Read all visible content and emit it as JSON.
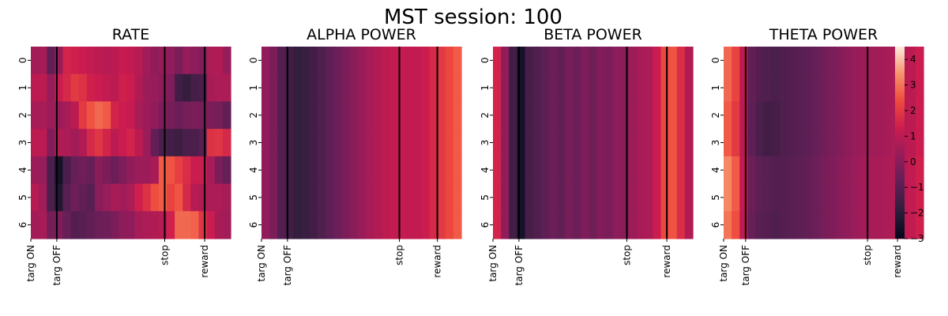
{
  "figure": {
    "suptitle": "MST session: 100"
  },
  "chart_data": [
    {
      "type": "heatmap",
      "title": "RATE",
      "rows": [
        "0",
        "1",
        "2",
        "3",
        "4",
        "5",
        "6"
      ],
      "x_tick_labels": [
        "targ ON",
        "targ OFF",
        "stop",
        "reward"
      ],
      "event_positions": [
        0.0,
        0.13,
        0.67,
        0.87
      ],
      "event_lines": [
        "targ OFF",
        "stop",
        "reward"
      ],
      "values": [
        [
          0.5,
          0.6,
          -0.8,
          0.3,
          1.5,
          1.4,
          1.3,
          1.1,
          1.0,
          0.9,
          1.0,
          1.2,
          1.1,
          0.9,
          0.5,
          0.2,
          0.3,
          0.2,
          -0.3,
          0.3,
          0.1,
          -0.1,
          0.7,
          0.8,
          0.3
        ],
        [
          1.0,
          1.0,
          0.3,
          1.3,
          1.6,
          2.0,
          1.8,
          1.4,
          1.3,
          1.1,
          1.0,
          1.4,
          1.3,
          0.8,
          0.4,
          0.3,
          0.1,
          -0.2,
          -1.5,
          -1.8,
          -1.4,
          -1.3,
          0.6,
          0.7,
          0.7
        ],
        [
          0.6,
          0.6,
          0.4,
          0.4,
          0.6,
          1.0,
          2.0,
          2.5,
          2.8,
          2.6,
          1.5,
          1.3,
          1.2,
          0.6,
          0.4,
          0.2,
          -0.2,
          -0.4,
          -0.6,
          -0.4,
          -0.3,
          -0.4,
          -0.3,
          -0.4,
          -0.8
        ],
        [
          1.0,
          1.0,
          -0.1,
          0.8,
          0.7,
          0.5,
          0.8,
          1.6,
          1.9,
          1.5,
          1.0,
          1.3,
          1.5,
          1.0,
          0.4,
          -0.8,
          -1.3,
          -1.5,
          -1.6,
          -1.3,
          -1.3,
          -1.0,
          1.8,
          1.9,
          1.6
        ],
        [
          0.4,
          0.3,
          -1.3,
          -2.5,
          -1.3,
          -0.7,
          -0.5,
          -0.7,
          0.0,
          -0.3,
          -0.6,
          -0.2,
          0.2,
          0.4,
          0.4,
          0.6,
          2.6,
          2.5,
          2.1,
          1.7,
          1.3,
          1.3,
          0.6,
          -0.3,
          -0.7
        ],
        [
          0.9,
          0.5,
          -1.3,
          -2.2,
          -1.0,
          -0.5,
          -0.8,
          -1.0,
          0.0,
          0.3,
          0.6,
          0.5,
          0.7,
          1.4,
          1.8,
          2.4,
          2.6,
          2.2,
          2.5,
          1.6,
          0.9,
          0.8,
          0.7,
          0.7,
          0.6
        ],
        [
          0.5,
          0.6,
          -0.4,
          -0.2,
          -0.7,
          -1.1,
          -1.0,
          -0.8,
          -0.6,
          -0.5,
          -0.3,
          0.1,
          0.2,
          0.6,
          0.7,
          0.8,
          0.9,
          1.4,
          2.8,
          2.8,
          2.7,
          1.9,
          1.3,
          0.6,
          0.5
        ]
      ]
    },
    {
      "type": "heatmap",
      "title": "ALPHA POWER",
      "rows": [
        "0",
        "1",
        "2",
        "3",
        "4",
        "5",
        "6"
      ],
      "x_tick_labels": [
        "targ ON",
        "targ OFF",
        "stop",
        "reward"
      ],
      "event_positions": [
        0.0,
        0.13,
        0.69,
        0.88
      ],
      "event_lines": [
        "targ OFF",
        "stop",
        "reward"
      ],
      "values": [
        [
          0.2,
          -0.3,
          -1.1,
          -1.5,
          -1.8,
          -1.7,
          -1.5,
          -1.2,
          -0.9,
          -0.6,
          -0.3,
          0.0,
          0.3,
          0.6,
          0.8,
          1.0,
          1.1,
          1.2,
          1.1,
          1.1,
          1.3,
          1.6,
          2.0,
          2.3,
          2.6
        ],
        [
          0.2,
          -0.3,
          -1.1,
          -1.5,
          -1.8,
          -1.7,
          -1.5,
          -1.2,
          -0.9,
          -0.6,
          -0.3,
          0.0,
          0.3,
          0.6,
          0.8,
          1.0,
          1.1,
          1.2,
          1.1,
          1.1,
          1.3,
          1.6,
          2.0,
          2.3,
          2.6
        ],
        [
          0.2,
          -0.3,
          -1.1,
          -1.5,
          -1.8,
          -1.7,
          -1.5,
          -1.2,
          -0.9,
          -0.6,
          -0.3,
          0.0,
          0.3,
          0.6,
          0.8,
          1.0,
          1.1,
          1.2,
          1.1,
          1.1,
          1.3,
          1.6,
          2.0,
          2.3,
          2.6
        ],
        [
          0.2,
          -0.3,
          -1.1,
          -1.5,
          -1.8,
          -1.7,
          -1.5,
          -1.2,
          -0.9,
          -0.6,
          -0.3,
          0.0,
          0.3,
          0.6,
          0.8,
          1.0,
          1.1,
          1.2,
          1.1,
          1.1,
          1.3,
          1.6,
          2.0,
          2.3,
          2.6
        ],
        [
          0.2,
          -0.3,
          -1.1,
          -1.5,
          -1.8,
          -1.7,
          -1.5,
          -1.2,
          -0.9,
          -0.6,
          -0.3,
          0.0,
          0.3,
          0.6,
          0.8,
          1.0,
          1.1,
          1.2,
          1.1,
          1.1,
          1.3,
          1.6,
          2.0,
          2.3,
          2.6
        ],
        [
          0.2,
          -0.3,
          -1.1,
          -1.5,
          -1.8,
          -1.7,
          -1.5,
          -1.2,
          -0.9,
          -0.6,
          -0.3,
          0.0,
          0.3,
          0.6,
          0.8,
          1.0,
          1.1,
          1.2,
          1.1,
          1.1,
          1.3,
          1.6,
          2.0,
          2.3,
          2.6
        ],
        [
          0.2,
          -0.3,
          -1.1,
          -1.5,
          -1.8,
          -1.7,
          -1.5,
          -1.2,
          -0.9,
          -0.6,
          -0.3,
          0.0,
          0.3,
          0.6,
          0.8,
          1.0,
          1.1,
          1.2,
          1.1,
          1.1,
          1.3,
          1.6,
          2.0,
          2.3,
          2.6
        ]
      ]
    },
    {
      "type": "heatmap",
      "title": "BETA POWER",
      "rows": [
        "0",
        "1",
        "2",
        "3",
        "4",
        "5",
        "6"
      ],
      "x_tick_labels": [
        "targ ON",
        "targ OFF",
        "stop",
        "reward"
      ],
      "event_positions": [
        0.0,
        0.13,
        0.67,
        0.87
      ],
      "event_lines": [
        "targ OFF",
        "stop",
        "reward"
      ],
      "values": [
        [
          1.5,
          0.2,
          -1.5,
          -2.5,
          -1.4,
          -1.2,
          -0.9,
          -0.6,
          -0.8,
          -0.4,
          -0.6,
          -0.2,
          -0.5,
          -0.1,
          -0.3,
          0.1,
          0.0,
          0.4,
          0.6,
          0.7,
          1.3,
          2.3,
          2.5,
          1.7,
          0.8
        ],
        [
          1.5,
          0.2,
          -1.5,
          -2.5,
          -1.4,
          -1.2,
          -0.9,
          -0.6,
          -0.8,
          -0.4,
          -0.6,
          -0.2,
          -0.5,
          -0.1,
          -0.3,
          0.1,
          0.0,
          0.4,
          0.6,
          0.7,
          1.3,
          2.3,
          2.5,
          1.7,
          0.8
        ],
        [
          1.5,
          0.2,
          -1.5,
          -2.5,
          -1.4,
          -1.2,
          -0.9,
          -0.6,
          -0.8,
          -0.4,
          -0.6,
          -0.2,
          -0.5,
          -0.1,
          -0.3,
          0.1,
          0.0,
          0.4,
          0.6,
          0.7,
          1.3,
          2.3,
          2.5,
          1.7,
          0.8
        ],
        [
          1.5,
          0.2,
          -1.5,
          -2.5,
          -1.4,
          -1.2,
          -0.9,
          -0.6,
          -0.8,
          -0.4,
          -0.6,
          -0.2,
          -0.5,
          -0.1,
          -0.3,
          0.1,
          0.0,
          0.4,
          0.6,
          0.7,
          1.3,
          2.3,
          2.5,
          1.7,
          0.8
        ],
        [
          1.5,
          0.2,
          -1.5,
          -2.5,
          -1.4,
          -1.2,
          -0.9,
          -0.6,
          -0.8,
          -0.4,
          -0.6,
          -0.2,
          -0.5,
          -0.1,
          -0.3,
          0.1,
          0.0,
          0.4,
          0.6,
          0.7,
          1.3,
          2.3,
          2.5,
          1.7,
          0.8
        ],
        [
          1.5,
          0.2,
          -1.5,
          -2.5,
          -1.4,
          -1.2,
          -0.9,
          -0.6,
          -0.8,
          -0.4,
          -0.6,
          -0.2,
          -0.5,
          -0.1,
          -0.3,
          0.1,
          0.0,
          0.4,
          0.6,
          0.7,
          1.3,
          2.3,
          2.5,
          1.7,
          0.8
        ],
        [
          1.5,
          0.2,
          -1.5,
          -2.5,
          -1.4,
          -1.2,
          -0.9,
          -0.6,
          -0.8,
          -0.4,
          -0.6,
          -0.2,
          -0.5,
          -0.1,
          -0.3,
          0.1,
          0.0,
          0.4,
          0.6,
          0.7,
          1.3,
          2.3,
          2.5,
          1.7,
          0.8
        ]
      ]
    },
    {
      "type": "heatmap",
      "title": "THETA POWER",
      "rows": [
        "0",
        "1",
        "2",
        "3",
        "4",
        "5",
        "6"
      ],
      "x_tick_labels": [
        "targ ON",
        "targ OFF",
        "stop",
        "reward"
      ],
      "event_positions": [
        0.0,
        0.11,
        0.72,
        0.87
      ],
      "event_lines": [
        "targ OFF",
        "stop",
        "reward"
      ],
      "values": [
        [
          2.8,
          2.2,
          1.0,
          -0.8,
          -1.1,
          -1.2,
          -1.3,
          -1.2,
          -1.1,
          -1.0,
          -0.9,
          -0.7,
          -0.5,
          -0.3,
          -0.1,
          0.1,
          0.3,
          0.4,
          0.5,
          0.5,
          0.6,
          0.7,
          0.9,
          1.0,
          1.3
        ],
        [
          2.8,
          2.2,
          1.0,
          -0.8,
          -1.1,
          -1.2,
          -1.3,
          -1.2,
          -1.1,
          -1.0,
          -0.9,
          -0.7,
          -0.5,
          -0.3,
          -0.1,
          0.1,
          0.3,
          0.4,
          0.5,
          0.5,
          0.6,
          0.7,
          0.9,
          1.0,
          1.3
        ],
        [
          2.6,
          2.0,
          1.0,
          -0.9,
          -1.3,
          -1.5,
          -1.4,
          -1.2,
          -1.1,
          -1.0,
          -0.9,
          -0.7,
          -0.5,
          -0.3,
          -0.1,
          0.1,
          0.3,
          0.4,
          0.5,
          0.5,
          0.6,
          0.7,
          0.9,
          1.0,
          1.3
        ],
        [
          2.6,
          2.0,
          1.0,
          -0.9,
          -1.3,
          -1.5,
          -1.4,
          -1.2,
          -1.1,
          -1.0,
          -0.9,
          -0.7,
          -0.5,
          -0.3,
          -0.1,
          0.1,
          0.3,
          0.4,
          0.5,
          0.5,
          0.6,
          0.7,
          0.9,
          1.0,
          1.3
        ],
        [
          3.3,
          2.6,
          1.1,
          -0.6,
          -0.9,
          -1.0,
          -1.1,
          -1.1,
          -1.0,
          -0.9,
          -0.8,
          -0.6,
          -0.4,
          -0.2,
          0.0,
          0.2,
          0.4,
          0.5,
          0.6,
          0.6,
          0.7,
          0.8,
          1.0,
          1.1,
          1.4
        ],
        [
          3.3,
          2.6,
          1.1,
          -0.6,
          -0.9,
          -1.0,
          -1.1,
          -1.1,
          -1.0,
          -0.9,
          -0.8,
          -0.6,
          -0.4,
          -0.2,
          0.0,
          0.2,
          0.4,
          0.5,
          0.6,
          0.6,
          0.7,
          0.8,
          1.0,
          1.1,
          1.4
        ],
        [
          3.0,
          2.4,
          1.0,
          -0.7,
          -1.0,
          -1.1,
          -1.2,
          -1.1,
          -1.0,
          -0.9,
          -0.8,
          -0.6,
          -0.4,
          -0.2,
          0.0,
          0.2,
          0.4,
          0.5,
          0.6,
          0.6,
          0.7,
          0.8,
          1.0,
          1.1,
          1.4
        ]
      ]
    }
  ],
  "colorbar": {
    "vmin": -3,
    "vmax": 4.5,
    "ticks": [
      -3,
      -2,
      -1,
      0,
      1,
      2,
      3,
      4
    ],
    "tick_labels": [
      "−3",
      "−2",
      "−1",
      "0",
      "1",
      "2",
      "3",
      "4"
    ],
    "colormap": "rocket",
    "colormap_stops": [
      "#03051a",
      "#2e1e3b",
      "#5f1f56",
      "#921c5b",
      "#cb1b4f",
      "#ee4a3d",
      "#f6926a",
      "#faebdd"
    ]
  }
}
